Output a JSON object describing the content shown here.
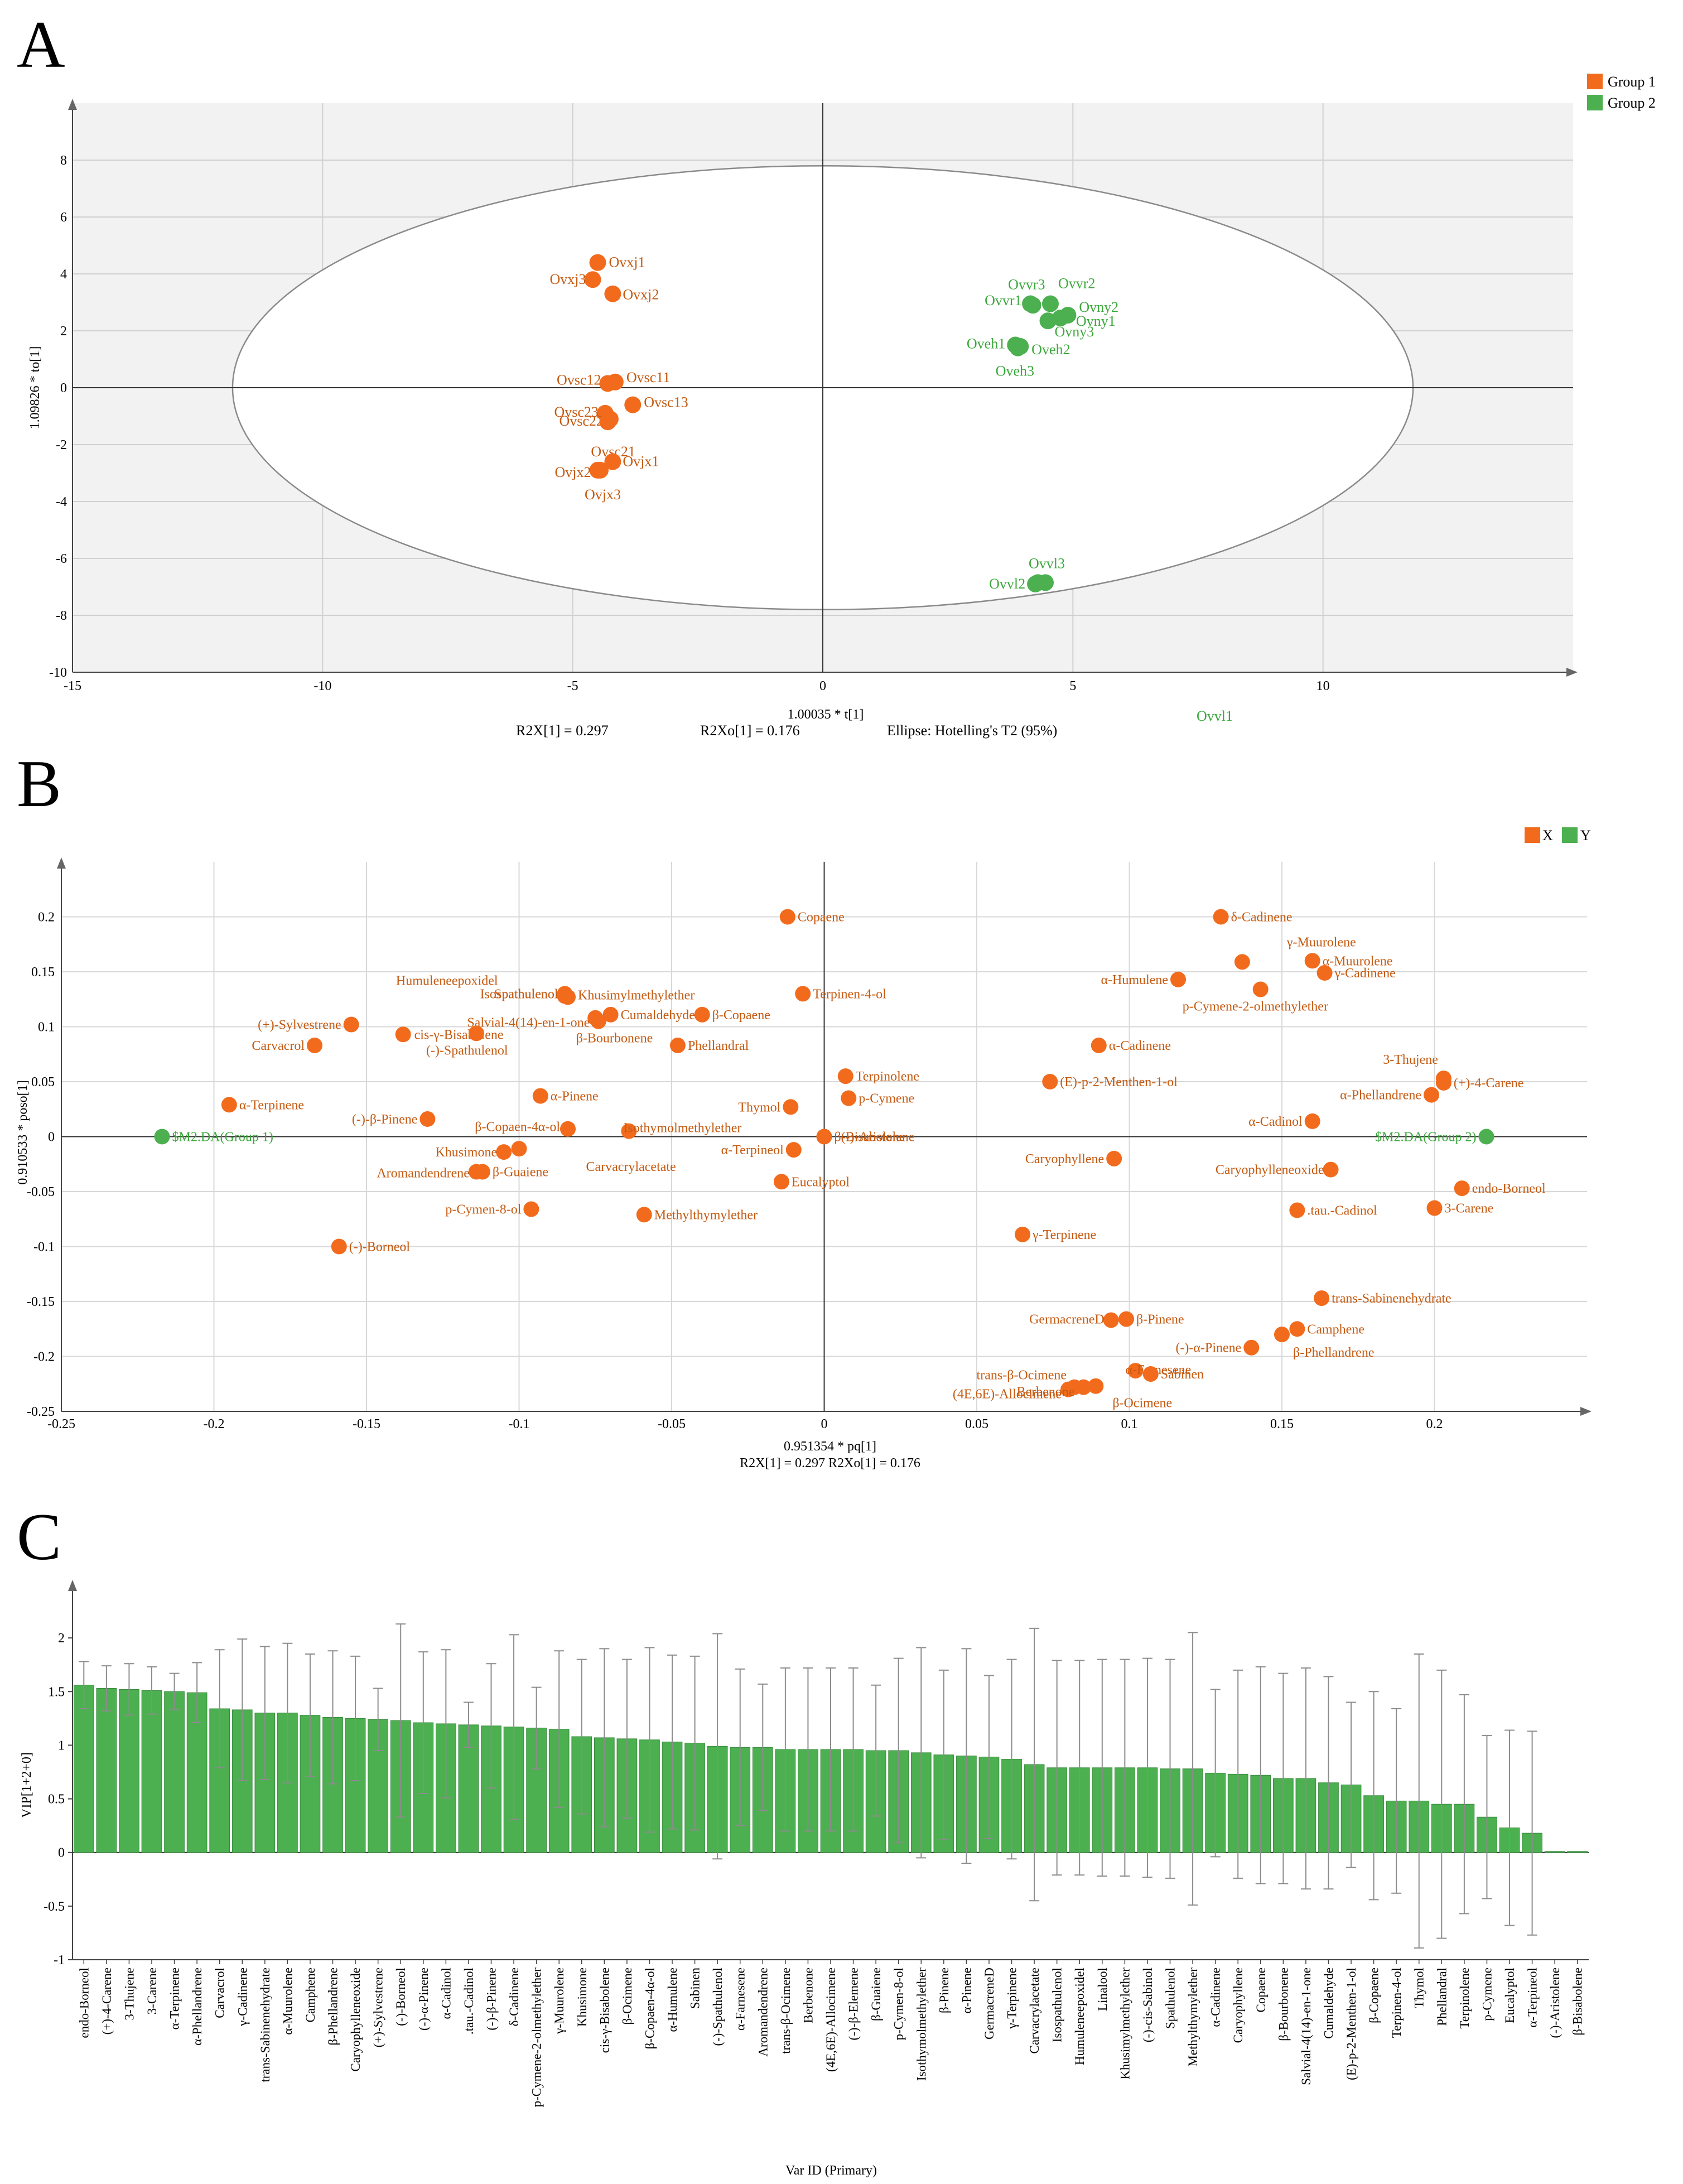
{
  "colors": {
    "orange": "#F26B1D",
    "orange_dark": "#C55A11",
    "green": "#4CB050",
    "green_dark": "#3CA83C",
    "bg": "#F2F2F2",
    "vip_bar": "#4CB050"
  },
  "chart_data": [
    {
      "type": "scatter",
      "panel": "A",
      "title": "",
      "xlabel": "1.00035 * t[1]",
      "ylabel": "1.09826 * to[1]",
      "xlim": [
        -15,
        15
      ],
      "ylim": [
        -10,
        10
      ],
      "xticks": [
        -15,
        -10,
        -5,
        0,
        5,
        10
      ],
      "yticks": [
        -10,
        -8,
        -6,
        -4,
        -2,
        0,
        2,
        4,
        6,
        8
      ],
      "ellipse": {
        "rx": 11.8,
        "ry": 7.8
      },
      "stats": {
        "r2x": "R2X[1] = 0.297",
        "r2xo": "R2Xo[1] = 0.176",
        "ellipse": "Ellipse: Hotelling's T2 (95%)"
      },
      "legend": [
        "Group 1",
        "Group 2"
      ],
      "series": [
        {
          "name": "Group 1",
          "points": [
            {
              "label": "Ovxj1",
              "x": -4.5,
              "y": 4.4
            },
            {
              "label": "Ovxj3",
              "x": -4.6,
              "y": 3.8
            },
            {
              "label": "Ovxj2",
              "x": -4.2,
              "y": 3.3
            },
            {
              "label": "Ovsc12",
              "x": -4.3,
              "y": 0.15
            },
            {
              "label": "Ovsc11",
              "x": -4.15,
              "y": 0.2
            },
            {
              "label": "Ovsc13",
              "x": -3.8,
              "y": -0.6
            },
            {
              "label": "Ovsc23",
              "x": -4.35,
              "y": -0.9
            },
            {
              "label": "Ovsc22",
              "x": -4.25,
              "y": -1.1
            },
            {
              "label": "Ovsc21",
              "x": -4.3,
              "y": -1.2
            },
            {
              "label": "Ovjx1",
              "x": -4.2,
              "y": -2.6
            },
            {
              "label": "Ovjx2",
              "x": -4.5,
              "y": -2.9
            },
            {
              "label": "Ovjx3",
              "x": -4.45,
              "y": -2.9
            }
          ]
        },
        {
          "name": "Group 2",
          "points": [
            {
              "label": "Ovvr3",
              "x": 4.15,
              "y": 2.95
            },
            {
              "label": "Ovvr2",
              "x": 4.55,
              "y": 2.95
            },
            {
              "label": "Ovvr1",
              "x": 4.2,
              "y": 2.9
            },
            {
              "label": "Ovny2",
              "x": 4.9,
              "y": 2.55
            },
            {
              "label": "Ovny1",
              "x": 4.75,
              "y": 2.45
            },
            {
              "label": "Ovny3",
              "x": 4.5,
              "y": 2.35
            },
            {
              "label": "Oveh1",
              "x": 3.85,
              "y": 1.5
            },
            {
              "label": "Oveh2",
              "x": 3.95,
              "y": 1.45
            },
            {
              "label": "Oveh3",
              "x": 3.9,
              "y": 1.4
            },
            {
              "label": "Ovvl3",
              "x": 4.45,
              "y": -6.85
            },
            {
              "label": "Ovvl2",
              "x": 4.25,
              "y": -6.9
            },
            {
              "label": "Ovvl1",
              "x": 4.3,
              "y": -6.85
            }
          ]
        }
      ]
    },
    {
      "type": "scatter",
      "panel": "B",
      "title": "",
      "xlabel": "0.951354 * pq[1]",
      "ylabel": "0.910533 * poso[1]",
      "subcaption": "R2X[1] = 0.297  R2Xo[1] = 0.176",
      "xlim": [
        -0.25,
        0.25
      ],
      "ylim": [
        -0.25,
        0.25
      ],
      "xticks": [
        -0.25,
        -0.2,
        -0.15,
        -0.1,
        -0.05,
        0,
        0.05,
        0.1,
        0.15,
        0.2
      ],
      "yticks": [
        -0.25,
        -0.2,
        -0.15,
        -0.1,
        -0.05,
        0,
        0.05,
        0.1,
        0.15,
        0.2
      ],
      "legend": [
        "X",
        "Y"
      ],
      "series": [
        {
          "name": "X",
          "points": [
            {
              "label": "Copaene",
              "x": -0.012,
              "y": 0.2
            },
            {
              "label": "δ-Cadinene",
              "x": 0.13,
              "y": 0.2
            },
            {
              "label": "γ-Muurolene",
              "x": 0.137,
              "y": 0.159
            },
            {
              "label": "α-Muurolene",
              "x": 0.16,
              "y": 0.16
            },
            {
              "label": "γ-Cadinene",
              "x": 0.164,
              "y": 0.149
            },
            {
              "label": "α-Humulene",
              "x": 0.116,
              "y": 0.143
            },
            {
              "label": "p-Cymene-2-olmethylether",
              "x": 0.143,
              "y": 0.134
            },
            {
              "label": "Humuleneepoxidel",
              "x": -0.085,
              "y": 0.13
            },
            {
              "label": "Isospathulenol",
              "x": -0.085,
              "y": 0.128
            },
            {
              "label": "Spathulenol",
              "x": -0.085,
              "y": 0.128
            },
            {
              "label": "Khusimylmethylether",
              "x": -0.084,
              "y": 0.127
            },
            {
              "label": "Terpinen-4-ol",
              "x": -0.007,
              "y": 0.13
            },
            {
              "label": "Salvial-4(14)-en-1-one",
              "x": -0.075,
              "y": 0.108
            },
            {
              "label": "Cumaldehyde",
              "x": -0.07,
              "y": 0.111
            },
            {
              "label": "β-Copaene",
              "x": -0.04,
              "y": 0.111
            },
            {
              "label": "(+)-Sylvestrene",
              "x": -0.155,
              "y": 0.102
            },
            {
              "label": "cis-γ-Bisabolene",
              "x": -0.138,
              "y": 0.093
            },
            {
              "label": "(-)-Spathulenol",
              "x": -0.114,
              "y": 0.094
            },
            {
              "label": "Carvacrol",
              "x": -0.167,
              "y": 0.083
            },
            {
              "label": "β-Bourbonene",
              "x": -0.074,
              "y": 0.105
            },
            {
              "label": "Phellandral",
              "x": -0.048,
              "y": 0.083
            },
            {
              "label": "α-Cadinene",
              "x": 0.09,
              "y": 0.083
            },
            {
              "label": "3-Thujene",
              "x": 0.203,
              "y": 0.053
            },
            {
              "label": "(+)-4-Carene",
              "x": 0.203,
              "y": 0.049
            },
            {
              "label": "Terpinolene",
              "x": 0.007,
              "y": 0.055
            },
            {
              "label": "(E)-p-2-Menthen-1-ol",
              "x": 0.074,
              "y": 0.05
            },
            {
              "label": "α-Phellandrene",
              "x": 0.199,
              "y": 0.038
            },
            {
              "label": "α-Pinene",
              "x": -0.093,
              "y": 0.037
            },
            {
              "label": "p-Cymene",
              "x": 0.008,
              "y": 0.035
            },
            {
              "label": "α-Terpinene",
              "x": -0.195,
              "y": 0.029
            },
            {
              "label": "Thymol",
              "x": -0.011,
              "y": 0.027
            },
            {
              "label": "(-)-β-Pinene",
              "x": -0.13,
              "y": 0.016
            },
            {
              "label": "α-Cadinol",
              "x": 0.16,
              "y": 0.014
            },
            {
              "label": "β-Copaen-4α-ol",
              "x": -0.084,
              "y": 0.007
            },
            {
              "label": "Isothymolmethylether",
              "x": -0.064,
              "y": 0.005
            },
            {
              "label": "β-Bisabolene",
              "x": 0,
              "y": 0
            },
            {
              "label": "(-)-Aristolene",
              "x": 0,
              "y": 0
            },
            {
              "label": "α-Terpineol",
              "x": -0.01,
              "y": -0.012
            },
            {
              "label": "Khusimone",
              "x": -0.105,
              "y": -0.014
            },
            {
              "label": "Carvacrylacetate",
              "x": -0.1,
              "y": -0.011
            },
            {
              "label": "Caryophyllene",
              "x": 0.095,
              "y": -0.02
            },
            {
              "label": "Caryophylleneoxide",
              "x": 0.166,
              "y": -0.03
            },
            {
              "label": "Aromandendrene",
              "x": -0.114,
              "y": -0.032
            },
            {
              "label": "β-Guaiene",
              "x": -0.112,
              "y": -0.032
            },
            {
              "label": "Eucalyptol",
              "x": -0.014,
              "y": -0.041
            },
            {
              "label": "endo-Borneol",
              "x": 0.209,
              "y": -0.047
            },
            {
              "label": "3-Carene",
              "x": 0.2,
              "y": -0.065
            },
            {
              "label": ".tau.-Cadinol",
              "x": 0.155,
              "y": -0.067
            },
            {
              "label": "p-Cymen-8-ol",
              "x": -0.096,
              "y": -0.066
            },
            {
              "label": "Methylthymylether",
              "x": -0.059,
              "y": -0.071
            },
            {
              "label": "γ-Terpinene",
              "x": 0.065,
              "y": -0.089
            },
            {
              "label": "(-)-Borneol",
              "x": -0.159,
              "y": -0.1
            },
            {
              "label": "trans-Sabinenehydrate",
              "x": 0.163,
              "y": -0.147
            },
            {
              "label": "GermacreneD",
              "x": 0.094,
              "y": -0.167
            },
            {
              "label": "β-Pinene",
              "x": 0.099,
              "y": -0.166
            },
            {
              "label": "Camphene",
              "x": 0.155,
              "y": -0.175
            },
            {
              "label": "(-)-α-Pinene",
              "x": 0.14,
              "y": -0.192
            },
            {
              "label": "β-Phellandrene",
              "x": 0.15,
              "y": -0.18
            },
            {
              "label": "α-Farnesene",
              "x": 0.102,
              "y": -0.213
            },
            {
              "label": "Sabinen",
              "x": 0.107,
              "y": -0.216
            },
            {
              "label": "trans-β-Ocimene",
              "x": 0.082,
              "y": -0.228
            },
            {
              "label": "(4E,6E)-Allocimene",
              "x": 0.08,
              "y": -0.23
            },
            {
              "label": "Berbenone",
              "x": 0.085,
              "y": -0.228
            },
            {
              "label": "β-Ocimene",
              "x": 0.089,
              "y": -0.227
            }
          ]
        },
        {
          "name": "Y",
          "points": [
            {
              "label": "$M2.DA(Group 1)",
              "x": -0.217,
              "y": 0
            },
            {
              "label": "$M2.DA(Group 2)",
              "x": 0.217,
              "y": 0
            }
          ]
        }
      ]
    },
    {
      "type": "bar",
      "panel": "C",
      "title": "",
      "xlabel": "Var ID (Primary)",
      "ylabel": "VIP[1+2+0]",
      "ylim": [
        -1,
        2.5
      ],
      "yticks": [
        -1,
        -0.5,
        0,
        0.5,
        1,
        1.5,
        2
      ],
      "categories": [
        "endo-Borneol",
        "(+)-4-Carene",
        "3-Thujene",
        "3-Carene",
        "α-Terpinene",
        "α-Phellandrene",
        "Carvacrol",
        "γ-Cadinene",
        "trans-Sabinenehydrate",
        "α-Muurolene",
        "Camphene",
        "β-Phellandrene",
        "Caryophylleneoxide",
        "(+)-Sylvestrene",
        "(-)-Borneol",
        "(-)-α-Pinene",
        "α-Cadinol",
        ".tau.-Cadinol",
        "(-)-β-Pinene",
        "δ-Cadinene",
        "p-Cymene-2-olmethylether",
        "γ-Muurolene",
        "Khusimone",
        "cis-γ-Bisabolene",
        "β-Ocimene",
        "β-Copaen-4α-ol",
        "α-Humulene",
        "Sabinen",
        "(-)-Spathulenol",
        "α-Farnesene",
        "Aromandendrene",
        "trans-β-Ocimene",
        "Berbenone",
        "(4E,6E)-Allocimene",
        "(-)-β-Elemene",
        "β-Guaiene",
        "p-Cymen-8-ol",
        "Isothymolmethylether",
        "β-Pinene",
        "α-Pinene",
        "GermacreneD",
        "γ-Terpinene",
        "Carvacrylacetate",
        "Isospathulenol",
        "Humuleneepoxidel",
        "Linalool",
        "Khusimylmethylether",
        "(-)-cis-Sabinol",
        "Spathulenol",
        "Methylthymylether",
        "α-Cadinene",
        "Caryophyllene",
        "Copaene",
        "β-Bourbonene",
        "Salvial-4(14)-en-1-one",
        "Cumaldehyde",
        "(E)-p-2-Menthen-1-ol",
        "β-Copaene",
        "Terpinen-4-ol",
        "Thymol",
        "Phellandral",
        "Terpinolene",
        "p-Cymene",
        "Eucalyptol",
        "α-Terpineol",
        "(-)-Aristolene",
        "β-Bisabolene"
      ],
      "values": [
        1.56,
        1.53,
        1.52,
        1.51,
        1.5,
        1.49,
        1.34,
        1.33,
        1.3,
        1.3,
        1.28,
        1.26,
        1.25,
        1.24,
        1.23,
        1.21,
        1.2,
        1.19,
        1.18,
        1.17,
        1.16,
        1.15,
        1.08,
        1.07,
        1.06,
        1.05,
        1.03,
        1.02,
        0.99,
        0.98,
        0.98,
        0.96,
        0.96,
        0.96,
        0.96,
        0.95,
        0.95,
        0.93,
        0.91,
        0.9,
        0.89,
        0.87,
        0.82,
        0.79,
        0.79,
        0.79,
        0.79,
        0.79,
        0.78,
        0.78,
        0.74,
        0.73,
        0.72,
        0.69,
        0.69,
        0.65,
        0.63,
        0.53,
        0.48,
        0.48,
        0.45,
        0.45,
        0.33,
        0.23,
        0.18,
        0.01,
        0.01
      ],
      "errors": [
        0.22,
        0.21,
        0.24,
        0.22,
        0.17,
        0.28,
        0.55,
        0.66,
        0.62,
        0.65,
        0.57,
        0.62,
        0.58,
        0.29,
        0.9,
        0.66,
        0.69,
        0.21,
        0.58,
        0.86,
        0.38,
        0.73,
        0.72,
        0.83,
        0.74,
        0.86,
        0.81,
        0.81,
        1.05,
        0.73,
        0.59,
        0.76,
        0.76,
        0.76,
        0.76,
        0.61,
        0.86,
        0.98,
        0.79,
        1.0,
        0.76,
        0.93,
        1.27,
        1.0,
        1.0,
        1.01,
        1.01,
        1.02,
        1.02,
        1.27,
        0.78,
        0.97,
        1.01,
        0.98,
        1.03,
        0.99,
        0.77,
        0.97,
        0.86,
        1.37,
        1.25,
        1.02,
        0.76,
        0.91,
        0.95,
        0,
        0
      ]
    }
  ]
}
